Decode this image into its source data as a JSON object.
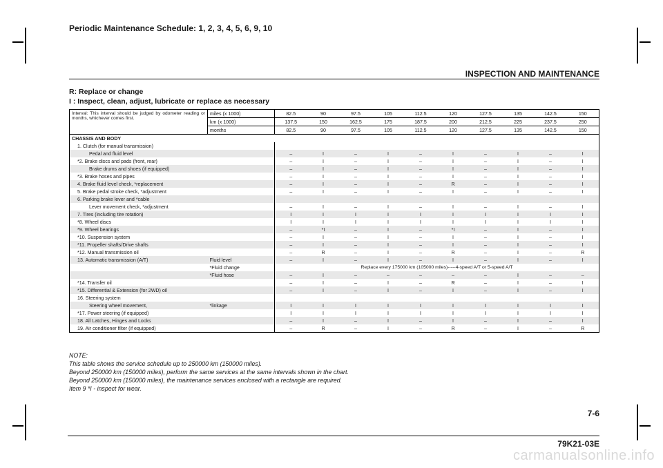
{
  "header_top": "Periodic Maintenance Schedule: 1, 2, 3, 4, 5, 6, 9, 10",
  "section_title": "INSPECTION AND MAINTENANCE",
  "legend_r": "R: Replace or change",
  "legend_i": " I : Inspect, clean, adjust, lubricate or replace as necessary",
  "interval_note": "Interval: This interval should be judged by odometer reading or months, whichever comes first.",
  "metrics": {
    "miles_label": "miles (x 1000)",
    "km_label": "km (x 1000)",
    "months_label": "months",
    "miles": [
      "82.5",
      "90",
      "97.5",
      "105",
      "112.5",
      "120",
      "127.5",
      "135",
      "142.5",
      "150"
    ],
    "km": [
      "137.5",
      "150",
      "162.5",
      "175",
      "187.5",
      "200",
      "212.5",
      "225",
      "237.5",
      "250"
    ],
    "months": [
      "82.5",
      "90",
      "97.5",
      "105",
      "112.5",
      "120",
      "127.5",
      "135",
      "142.5",
      "150"
    ]
  },
  "category": "CHASSIS AND BODY",
  "rows": [
    {
      "shade": false,
      "item": "  1. Clutch (for manual transmission)",
      "col2": "",
      "v": [
        "",
        "",
        "",
        "",
        "",
        "",
        "",
        "",
        "",
        ""
      ]
    },
    {
      "shade": true,
      "item": "Pedal and fluid level",
      "col2": "",
      "v": [
        "–",
        "I",
        "–",
        "I",
        "–",
        "I",
        "–",
        "I",
        "–",
        "I"
      ],
      "indent": true
    },
    {
      "shade": false,
      "item": "*2. Brake discs and pads (front, rear)",
      "col2": "",
      "v": [
        "–",
        "I",
        "–",
        "I",
        "–",
        "I",
        "–",
        "I",
        "–",
        "I"
      ]
    },
    {
      "shade": true,
      "item": "Brake drums and shoes (if equipped)",
      "col2": "",
      "v": [
        "–",
        "I",
        "–",
        "I",
        "–",
        "I",
        "–",
        "I",
        "–",
        "I"
      ],
      "indent": true
    },
    {
      "shade": false,
      "item": "*3. Brake hoses and pipes",
      "col2": "",
      "v": [
        "–",
        "I",
        "–",
        "I",
        "–",
        "I",
        "–",
        "I",
        "–",
        "I"
      ]
    },
    {
      "shade": true,
      "item": "  4. Brake fluid level check, *replacement",
      "col2": "",
      "v": [
        "–",
        "I",
        "–",
        "I",
        "–",
        "R",
        "–",
        "I",
        "–",
        "I"
      ]
    },
    {
      "shade": false,
      "item": "  5. Brake pedal stroke check, *adjustment",
      "col2": "",
      "v": [
        "–",
        "I",
        "–",
        "I",
        "–",
        "I",
        "–",
        "I",
        "–",
        "I"
      ]
    },
    {
      "shade": true,
      "item": "  6. Parking brake lever and *cable",
      "col2": "",
      "v": [
        "",
        "",
        "",
        "",
        "",
        "",
        "",
        "",
        "",
        ""
      ]
    },
    {
      "shade": false,
      "item": "Lever movement check, *adjustment",
      "col2": "",
      "v": [
        "–",
        "I",
        "–",
        "I",
        "–",
        "I",
        "–",
        "I",
        "–",
        "I"
      ],
      "indent": true
    },
    {
      "shade": true,
      "item": "  7. Tires (including tire rotation)",
      "col2": "",
      "v": [
        "I",
        "I",
        "I",
        "I",
        "I",
        "I",
        "I",
        "I",
        "I",
        "I"
      ]
    },
    {
      "shade": false,
      "item": "*8. Wheel discs",
      "col2": "",
      "v": [
        "I",
        "I",
        "I",
        "I",
        "I",
        "I",
        "I",
        "I",
        "I",
        "I"
      ]
    },
    {
      "shade": true,
      "item": "*9. Wheel bearings",
      "col2": "",
      "v": [
        "–",
        "*I",
        "–",
        "I",
        "–",
        "*I",
        "–",
        "I",
        "–",
        "I"
      ]
    },
    {
      "shade": false,
      "item": "*10. Suspension system",
      "col2": "",
      "v": [
        "–",
        "I",
        "–",
        "I",
        "–",
        "I",
        "–",
        "I",
        "–",
        "I"
      ]
    },
    {
      "shade": true,
      "item": "*11. Propeller shafts/Drive shafts",
      "col2": "",
      "v": [
        "–",
        "I",
        "–",
        "I",
        "–",
        "I",
        "–",
        "I",
        "–",
        "I"
      ]
    },
    {
      "shade": false,
      "item": "*12. Manual transmission oil",
      "col2": "",
      "v": [
        "–",
        "R",
        "–",
        "I",
        "–",
        "R",
        "–",
        "I",
        "–",
        "R"
      ]
    },
    {
      "shade": true,
      "item": "  13. Automatic transmission (A/T)",
      "col2": "Fluid level",
      "v": [
        "–",
        "I",
        "–",
        "I",
        "–",
        "I",
        "–",
        "I",
        "–",
        "I"
      ]
    },
    {
      "shade": false,
      "item": "",
      "col2": "*Fluid change",
      "span": "Replace every 175000 km (105000 miles)-----4-speed A/T or 5-speed A/T"
    },
    {
      "shade": true,
      "item": "",
      "col2": "*Fluid hose",
      "v": [
        "–",
        "I",
        "–",
        "–",
        "–",
        "–",
        "–",
        "I",
        "–",
        "–"
      ]
    },
    {
      "shade": false,
      "item": "*14. Transfer oil",
      "col2": "",
      "v": [
        "–",
        "I",
        "–",
        "I",
        "–",
        "R",
        "–",
        "I",
        "–",
        "I"
      ]
    },
    {
      "shade": true,
      "item": "*15. Differential & Extension (for 2WD) oil",
      "col2": "",
      "v": [
        "–",
        "I",
        "–",
        "I",
        "–",
        "I",
        "–",
        "I",
        "–",
        "I"
      ]
    },
    {
      "shade": false,
      "item": "  16. Steering system",
      "col2": "",
      "v": [
        "",
        "",
        "",
        "",
        "",
        "",
        "",
        "",
        "",
        ""
      ]
    },
    {
      "shade": true,
      "item": "Steering wheel movement,",
      "col2": "*linkage",
      "v": [
        "I",
        "I",
        "I",
        "I",
        "I",
        "I",
        "I",
        "I",
        "I",
        "I"
      ],
      "indent": true
    },
    {
      "shade": false,
      "item": "*17. Power steering (if equipped)",
      "col2": "",
      "v": [
        "I",
        "I",
        "I",
        "I",
        "I",
        "I",
        "I",
        "I",
        "I",
        "I"
      ]
    },
    {
      "shade": true,
      "item": "  18. All Latches, Hinges and Locks",
      "col2": "",
      "v": [
        "–",
        "I",
        "–",
        "I",
        "–",
        "I",
        "–",
        "I",
        "–",
        "I"
      ]
    },
    {
      "shade": false,
      "item": "  19. Air conditioner filter (if equipped)",
      "col2": "",
      "v": [
        "–",
        "R",
        "–",
        "I",
        "–",
        "R",
        "–",
        "I",
        "–",
        "R"
      ],
      "last": true
    }
  ],
  "note_title": "NOTE:",
  "note_lines": [
    "This table shows the service schedule up to 250000 km (150000 miles).",
    "Beyond 250000 km (150000 miles), perform the same services at the same intervals shown in the chart.",
    "Beyond 250000 km (150000 miles), the maintenance services enclosed with a rectangle are required.",
    "Item 9 *I - inspect for wear."
  ],
  "page_num": "7-6",
  "doc_code": "79K21-03E",
  "watermark": "carmanualsonline.info"
}
